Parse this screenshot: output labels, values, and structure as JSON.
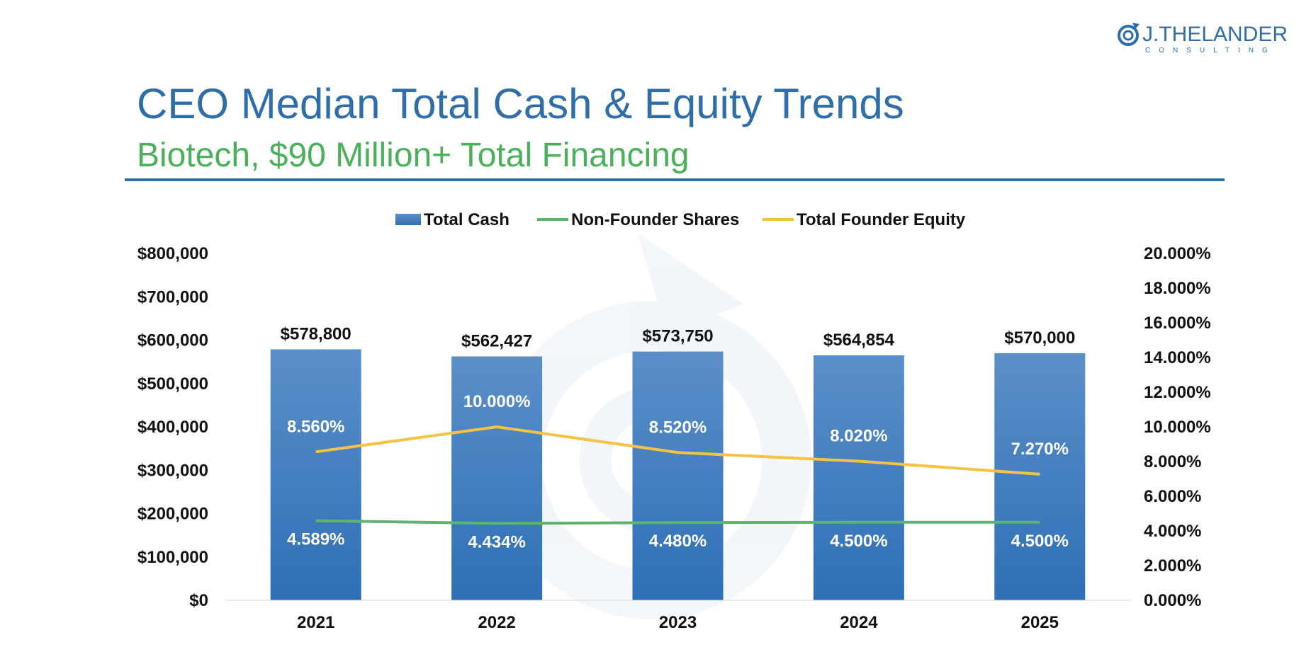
{
  "header": {
    "title": "CEO Median Total Cash & Equity Trends",
    "subtitle": "Biotech, $90 Million+ Total Financing"
  },
  "logo": {
    "name": "J.THELANDER",
    "tagline": "CONSULTING",
    "color": "#2f6ea8",
    "icon": "spiral-icon"
  },
  "colors": {
    "title": "#2f6ea8",
    "subtitle": "#4caf5a",
    "bar": "#3a78bd",
    "non_founder": "#5db56b",
    "founder": "#f5c343"
  },
  "chart_data": {
    "type": "bar",
    "categories": [
      "2021",
      "2022",
      "2023",
      "2024",
      "2025"
    ],
    "series": [
      {
        "name": "Total Cash",
        "type": "bar",
        "axis": "left",
        "values": [
          578800,
          562427,
          573750,
          564854,
          570000
        ],
        "labels": [
          "$578,800",
          "$562,427",
          "$573,750",
          "$564,854",
          "$570,000"
        ]
      },
      {
        "name": "Non-Founder Shares",
        "type": "line",
        "axis": "right",
        "values": [
          4.589,
          4.434,
          4.48,
          4.5,
          4.5
        ],
        "labels": [
          "4.589%",
          "4.434%",
          "4.480%",
          "4.500%",
          "4.500%"
        ]
      },
      {
        "name": "Total Founder Equity",
        "type": "line",
        "axis": "right",
        "values": [
          8.56,
          10.0,
          8.52,
          8.02,
          7.27
        ],
        "labels": [
          "8.560%",
          "10.000%",
          "8.520%",
          "8.020%",
          "7.270%"
        ]
      }
    ],
    "y_left": {
      "ylim": [
        0,
        800000
      ],
      "ticks": [
        "$0",
        "$100,000",
        "$200,000",
        "$300,000",
        "$400,000",
        "$500,000",
        "$600,000",
        "$700,000",
        "$800,000"
      ]
    },
    "y_right": {
      "ylim": [
        0,
        20
      ],
      "ticks": [
        "0.000%",
        "2.000%",
        "4.000%",
        "6.000%",
        "8.000%",
        "10.000%",
        "12.000%",
        "14.000%",
        "16.000%",
        "18.000%",
        "20.000%"
      ]
    },
    "legend_position": "top-center",
    "grid": false
  }
}
